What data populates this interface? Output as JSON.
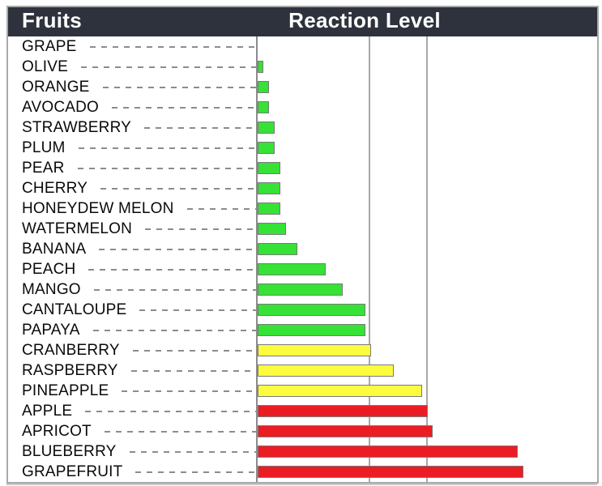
{
  "header": {
    "fruits_label": "Fruits",
    "reaction_label": "Reaction Level"
  },
  "chart_data": {
    "type": "bar",
    "orientation": "horizontal",
    "title": "Reaction Level",
    "xlabel": "",
    "ylabel": "Fruits",
    "xlim": [
      0,
      6
    ],
    "gridlines_x": [
      2,
      3
    ],
    "legend": "none",
    "categories": [
      "GRAPE",
      "OLIVE",
      "ORANGE",
      "AVOCADO",
      "STRAWBERRY",
      "PLUM",
      "PEAR",
      "CHERRY",
      "HONEYDEW MELON",
      "WATERMELON",
      "BANANA",
      "PEACH",
      "MANGO",
      "CANTALOUPE",
      "PAPAYA",
      "CRANBERRY",
      "RASPBERRY",
      "PINEAPPLE",
      "APPLE",
      "APRICOT",
      "BLUEBERRY",
      "GRAPEFRUIT"
    ],
    "values": [
      0,
      0.1,
      0.2,
      0.2,
      0.3,
      0.3,
      0.4,
      0.4,
      0.4,
      0.5,
      0.7,
      1.2,
      1.5,
      1.9,
      1.9,
      2.0,
      2.4,
      2.9,
      3.0,
      3.1,
      4.6,
      4.7
    ],
    "colors": [
      "green",
      "green",
      "green",
      "green",
      "green",
      "green",
      "green",
      "green",
      "green",
      "green",
      "green",
      "green",
      "green",
      "green",
      "green",
      "yellow",
      "yellow",
      "yellow",
      "red",
      "red",
      "red",
      "red"
    ],
    "palette": {
      "green": "#35E235",
      "yellow": "#FCFC3E",
      "red": "#EC1C24"
    },
    "colors_meta": {
      "header_bg": "#2E323C",
      "header_text": "#FFFFFF",
      "axis_line": "#8C8C8C",
      "gridline": "#A8A8A8",
      "bar_border": "#7A7A7A",
      "leader_dash": "#8C8C8C",
      "frame_border": "#A9A9A9"
    }
  }
}
